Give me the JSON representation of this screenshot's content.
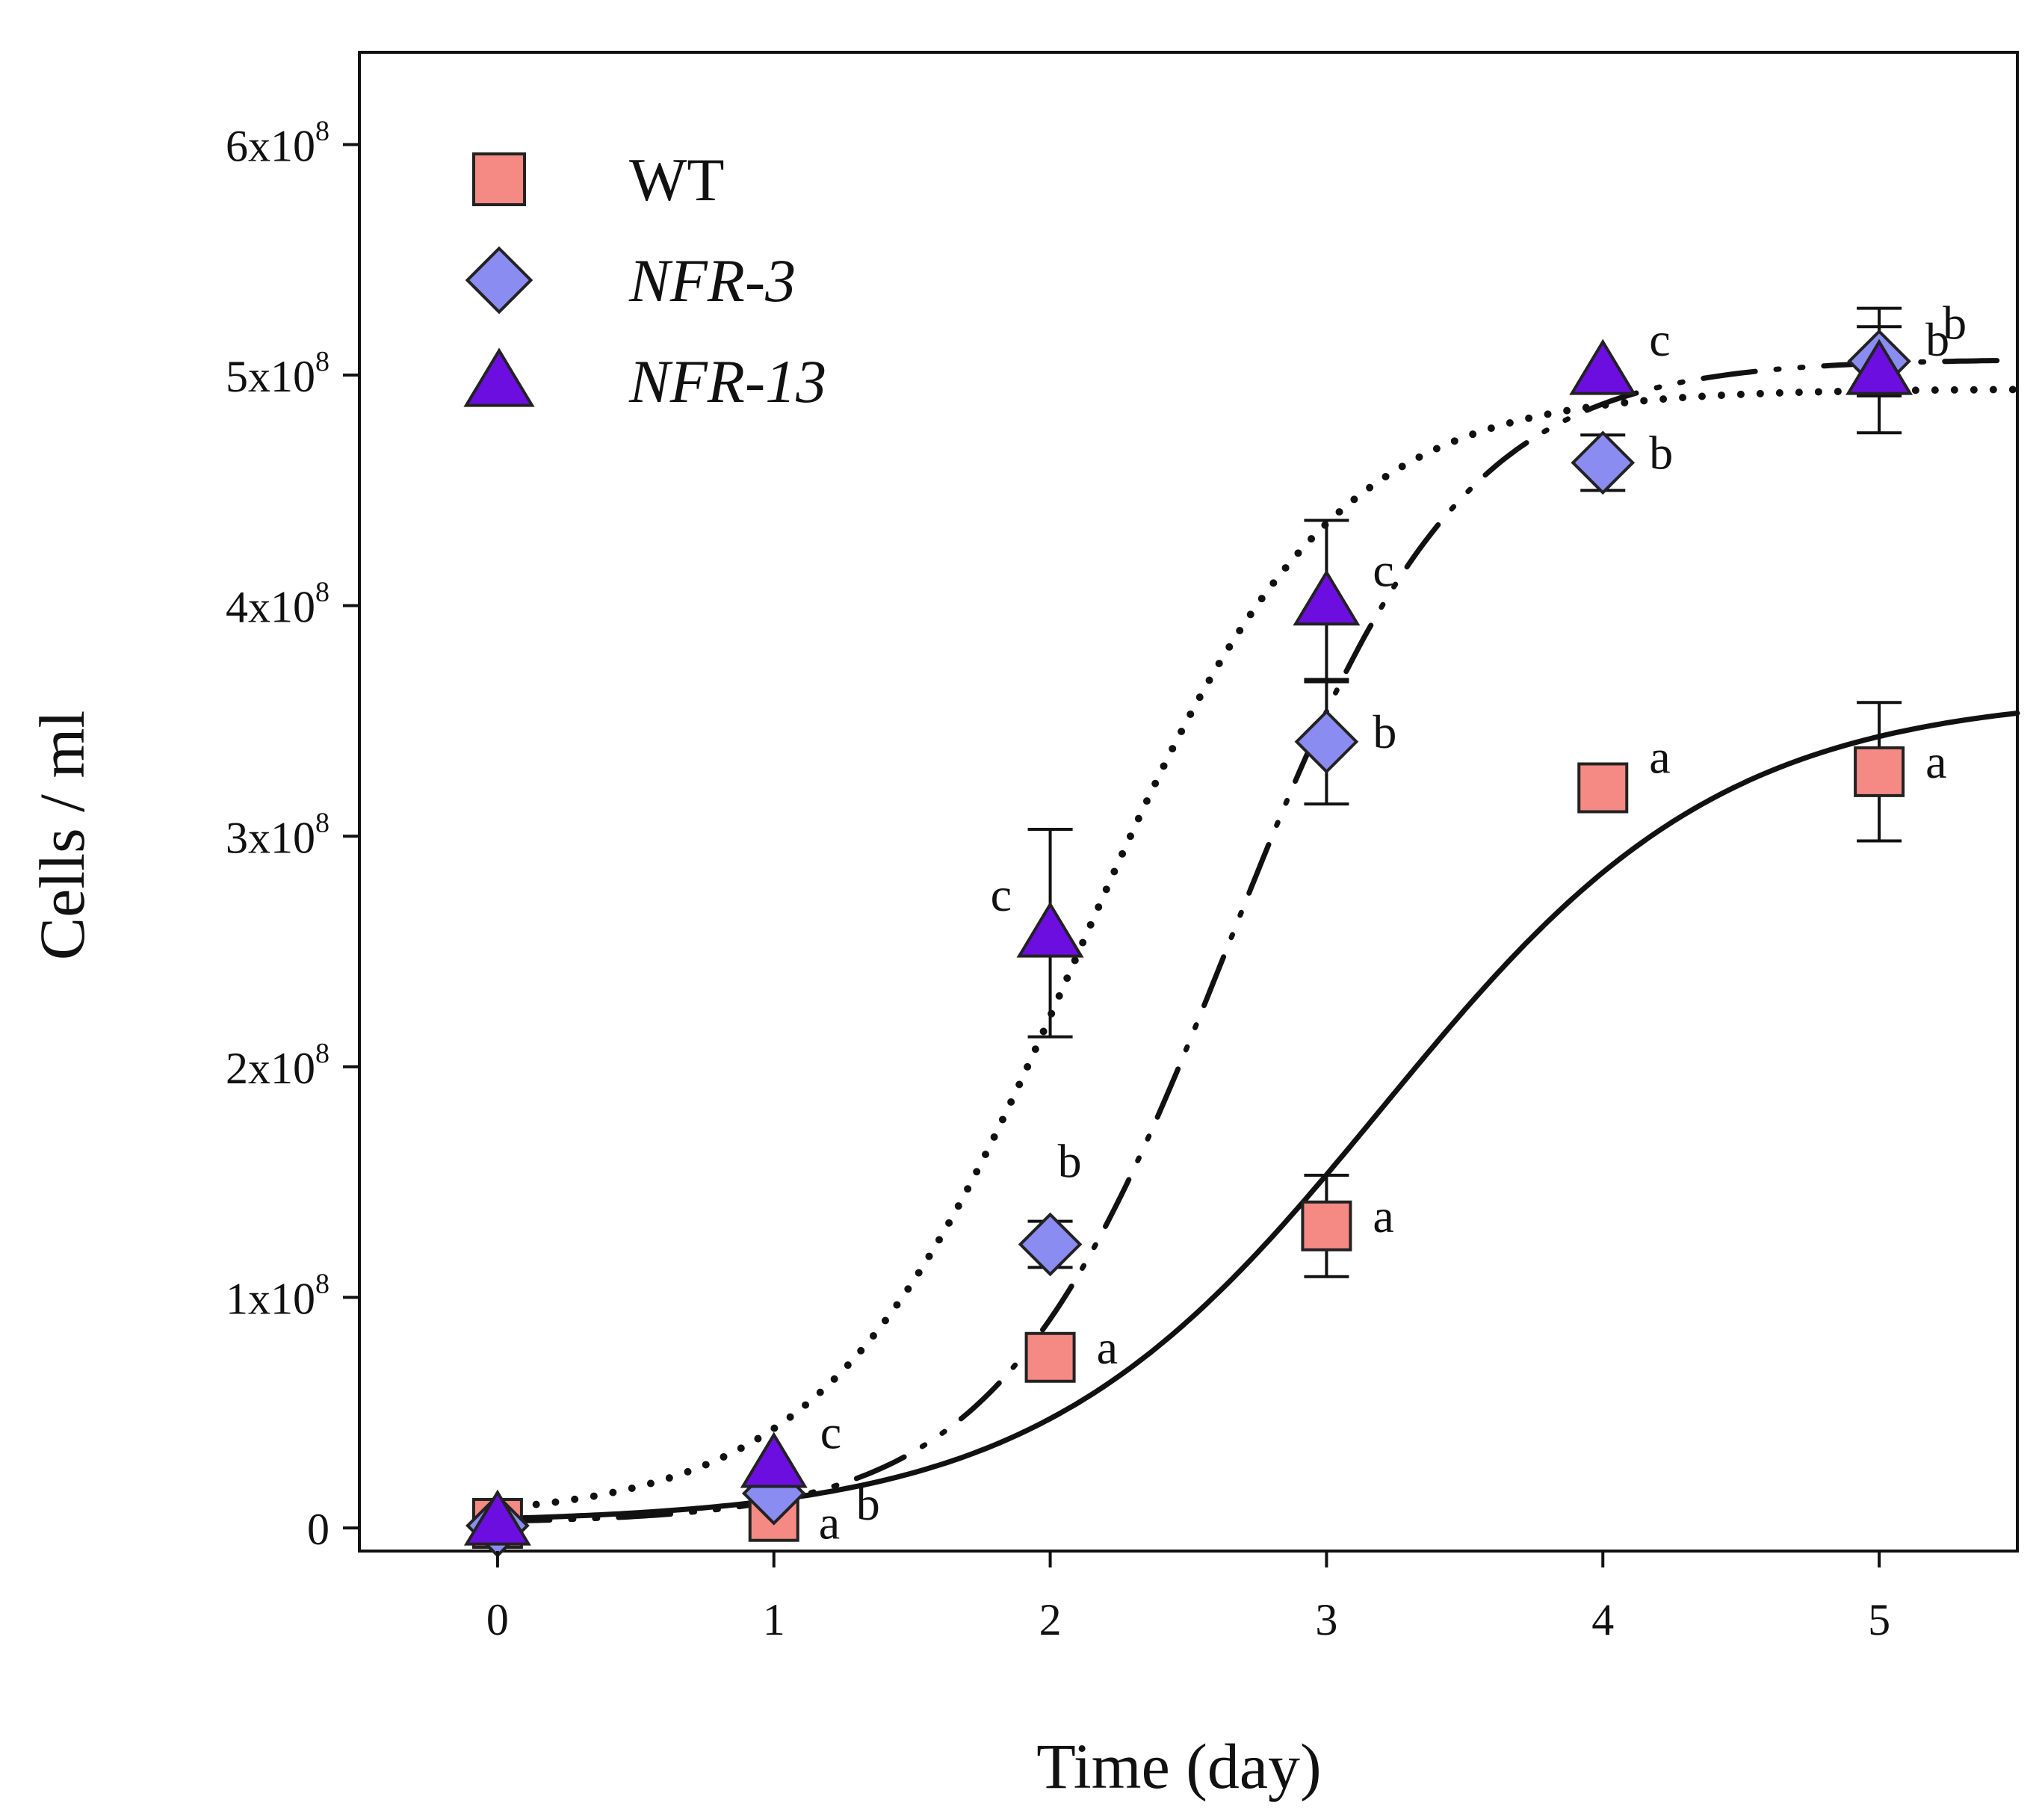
{
  "chart_data": {
    "type": "scatter",
    "title": "",
    "xlabel": "Time (day)",
    "ylabel": "Cells / ml",
    "xlim": [
      -0.5,
      5.5
    ],
    "ylim": [
      -10000000.0,
      640000000.0
    ],
    "x_ticks": [
      0,
      1,
      2,
      3,
      4,
      5
    ],
    "x_tick_labels": [
      "0",
      "1",
      "2",
      "3",
      "4",
      "5"
    ],
    "y_ticks": [
      {
        "value": 0,
        "label": "0",
        "sup": ""
      },
      {
        "value": 100000000,
        "label": "1x10",
        "sup": "8"
      },
      {
        "value": 200000000,
        "label": "2x10",
        "sup": "8"
      },
      {
        "value": 300000000,
        "label": "3x10",
        "sup": "8"
      },
      {
        "value": 400000000,
        "label": "4x10",
        "sup": "8"
      },
      {
        "value": 500000000,
        "label": "5x10",
        "sup": "8"
      },
      {
        "value": 600000000,
        "label": "6x10",
        "sup": "8"
      }
    ],
    "grid": false,
    "legend_position": "top-left",
    "series": [
      {
        "name": "WT",
        "italic": false,
        "marker": "square",
        "color": "#f58a84",
        "line_style": "solid",
        "x": [
          0,
          1,
          2,
          3,
          4,
          5
        ],
        "y": [
          2000000,
          5000000,
          74000000,
          131000000,
          321000000,
          328000000
        ],
        "err": [
          0,
          0,
          0,
          22000000,
          0,
          30000000
        ],
        "labels": [
          "",
          "a",
          "a",
          "a",
          "a",
          "a"
        ],
        "fit": {
          "a": 360000000,
          "x0": 3.2,
          "b": 0.62,
          "y0": 2000000
        }
      },
      {
        "name": "NFR-3",
        "italic": true,
        "marker": "diamond",
        "color": "#8a8cf2",
        "line_style": "dash-dot-dot",
        "x": [
          0,
          1,
          2,
          3,
          4,
          5
        ],
        "y": [
          1000000,
          15000000,
          123000000,
          341000000,
          462000000,
          506000000
        ],
        "err": [
          0,
          0,
          10000000,
          27000000,
          12000000,
          15000000
        ],
        "labels": [
          "",
          "b",
          "b",
          "b",
          "b",
          "b"
        ],
        "fit": {
          "a": 505000000,
          "x0": 2.65,
          "b": 0.42,
          "y0": 2000000
        }
      },
      {
        "name": "NFR-13",
        "italic": true,
        "marker": "triangle",
        "color": "#6c0ee0",
        "line_style": "dotted",
        "x": [
          0,
          1,
          2,
          3,
          4,
          5
        ],
        "y": [
          3000000,
          28000000,
          258000000,
          402000000,
          502000000,
          502000000
        ],
        "err": [
          0,
          0,
          45000000,
          35000000,
          0,
          27000000
        ],
        "labels": [
          "",
          "c",
          "c",
          "c",
          "c",
          "b"
        ],
        "fit": {
          "a": 490000000,
          "x0": 2.1,
          "b": 0.45,
          "y0": 4000000
        }
      }
    ]
  }
}
